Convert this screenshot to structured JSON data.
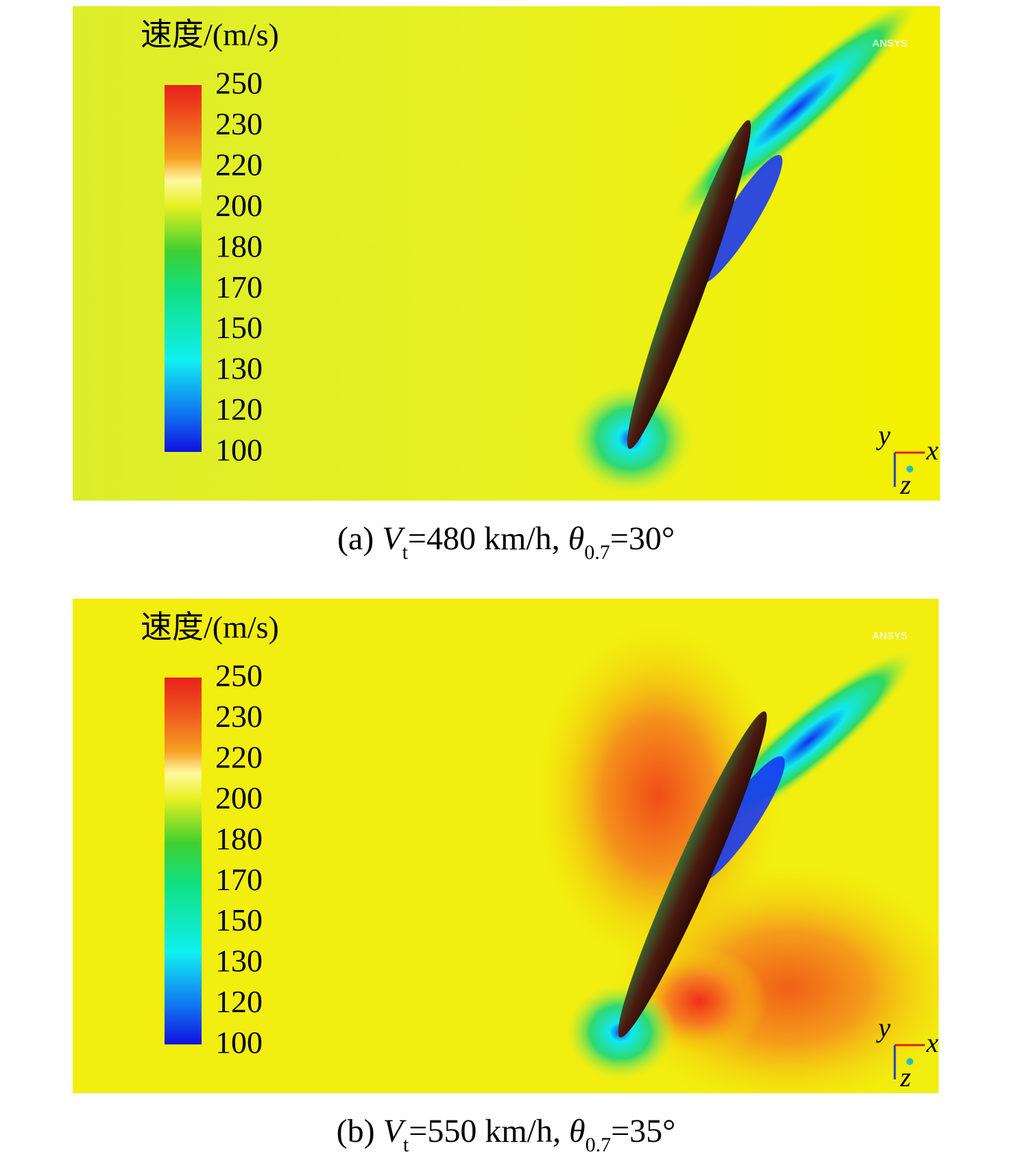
{
  "panels": [
    {
      "legend_title": "速度/(m/s)",
      "colorbar_ticks": [
        250,
        230,
        220,
        200,
        180,
        170,
        150,
        130,
        120,
        100
      ],
      "watermark": "ANSYS",
      "axes": [
        "y",
        "x",
        "z"
      ],
      "caption": {
        "label": "(a) ",
        "v": "V",
        "v_sub": "t",
        "speed": "=480 km/h, ",
        "theta": "θ",
        "theta_sub": "0.7",
        "angle": "=30°"
      }
    },
    {
      "legend_title": "速度/(m/s)",
      "colorbar_ticks": [
        250,
        230,
        220,
        200,
        180,
        170,
        150,
        130,
        120,
        100
      ],
      "watermark": "ANSYS",
      "axes": [
        "y",
        "x",
        "z"
      ],
      "caption": {
        "label": "(b) ",
        "v": "V",
        "v_sub": "t",
        "speed": "=550 km/h, ",
        "theta": "θ",
        "theta_sub": "0.7",
        "angle": "=35°"
      }
    }
  ]
}
